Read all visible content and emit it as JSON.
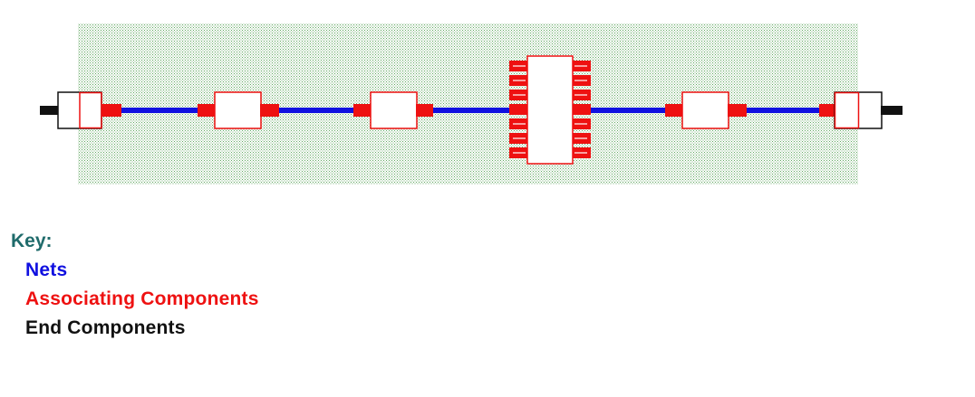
{
  "colors": {
    "title": "#1f6b6b",
    "net": "#1010e0",
    "associating": "#ee1111",
    "end": "#111111",
    "board_dots": "#2e8b2e",
    "component_fill": "#ffffff"
  },
  "key": {
    "title": "Key:",
    "items": [
      {
        "label": "Nets",
        "color_key": "net"
      },
      {
        "label": "Associating Components",
        "color_key": "associating"
      },
      {
        "label": "End Components",
        "color_key": "end"
      }
    ]
  }
}
